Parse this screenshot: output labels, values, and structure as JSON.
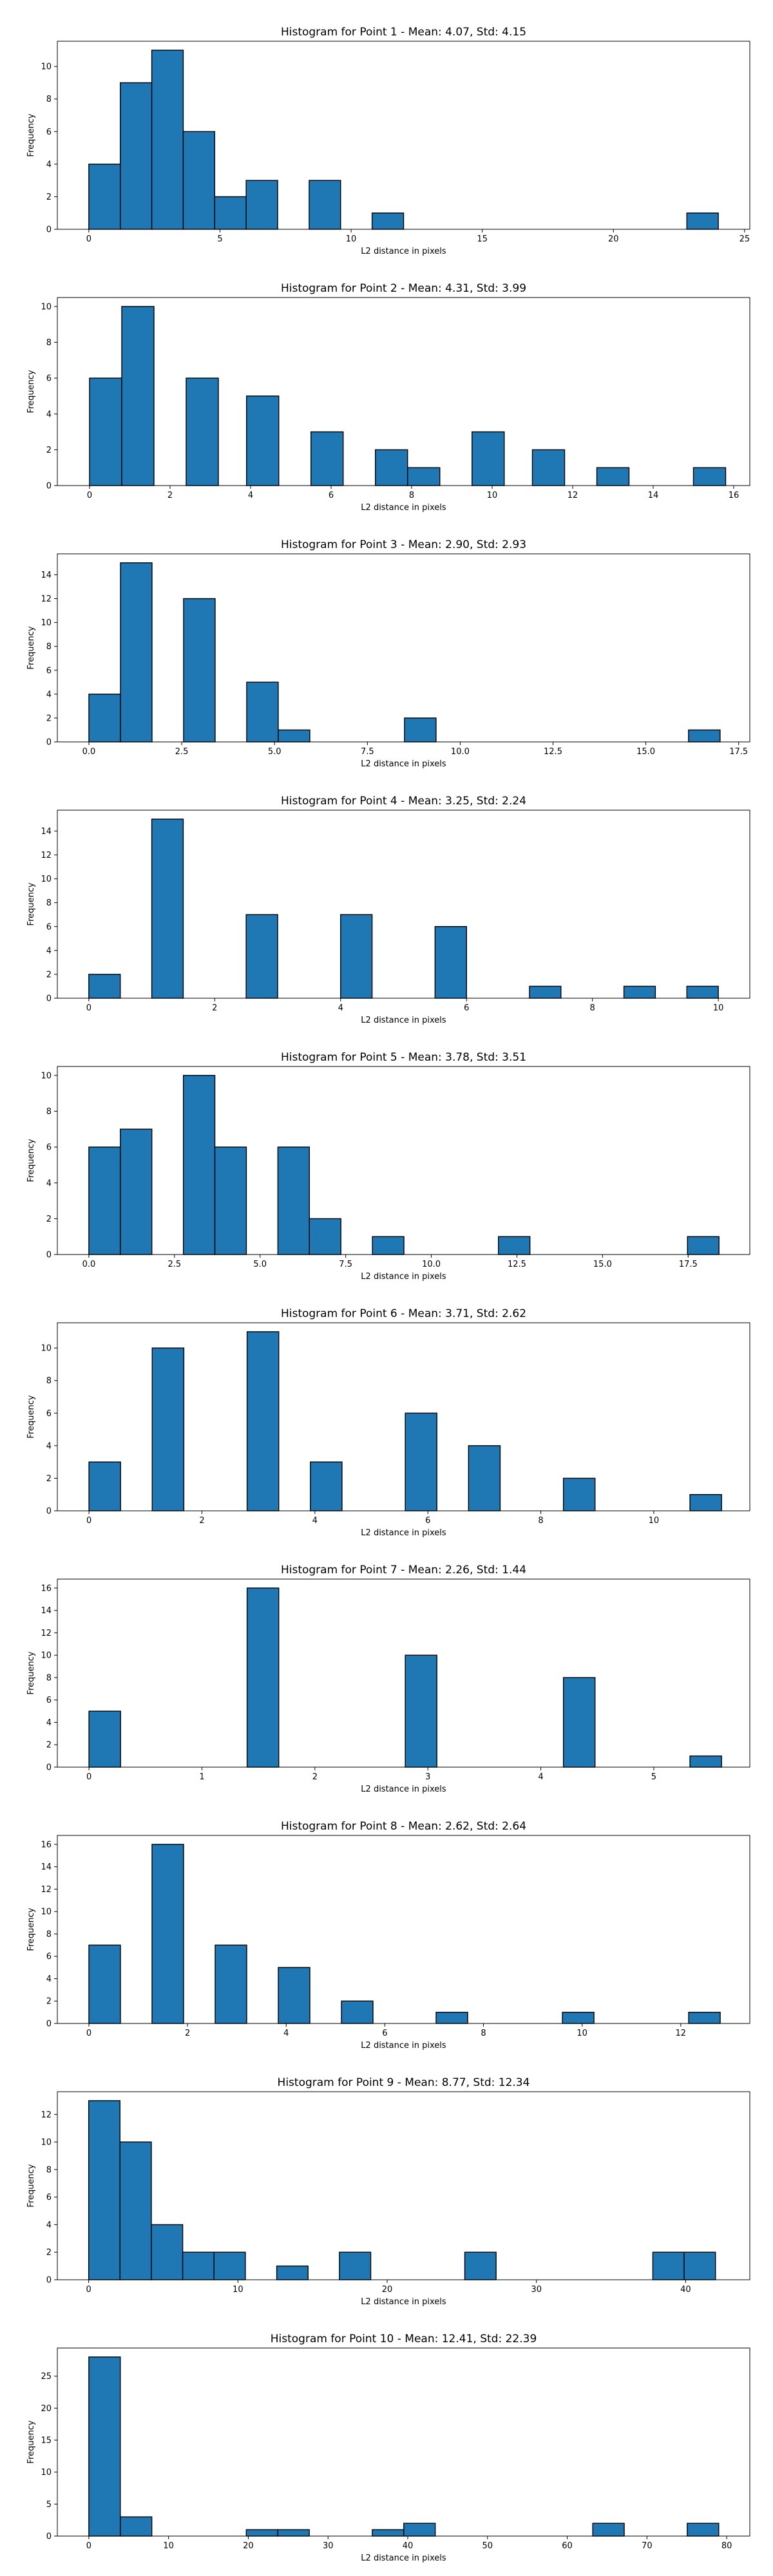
{
  "colors": {
    "bar": "#1f77b4",
    "edge": "#000000"
  },
  "chart_data": [
    {
      "type": "bar",
      "title": "Histogram for Point 1 - Mean: 4.07, Std: 4.15",
      "xlabel": "L2 distance in pixels",
      "ylabel": "Frequency",
      "xlim": [
        -1.2,
        25.2
      ],
      "ylim": [
        0,
        11.55
      ],
      "xticks": [
        0,
        5,
        10,
        15,
        20,
        25
      ],
      "yticks": [
        0,
        2,
        4,
        6,
        8,
        10
      ],
      "bars": [
        {
          "x0": 0.0,
          "x1": 1.2,
          "v": 4
        },
        {
          "x0": 1.2,
          "x1": 2.4,
          "v": 9
        },
        {
          "x0": 2.4,
          "x1": 3.6,
          "v": 11
        },
        {
          "x0": 3.6,
          "x1": 4.8,
          "v": 6
        },
        {
          "x0": 4.8,
          "x1": 6.0,
          "v": 2
        },
        {
          "x0": 6.0,
          "x1": 7.2,
          "v": 3
        },
        {
          "x0": 8.4,
          "x1": 9.6,
          "v": 3
        },
        {
          "x0": 10.8,
          "x1": 12.0,
          "v": 1
        },
        {
          "x0": 22.8,
          "x1": 24.0,
          "v": 1
        }
      ]
    },
    {
      "type": "bar",
      "title": "Histogram for Point 2 - Mean: 4.31, Std: 3.99",
      "xlabel": "L2 distance in pixels",
      "ylabel": "Frequency",
      "xlim": [
        -0.8,
        16.4
      ],
      "ylim": [
        0,
        10.5
      ],
      "xticks": [
        0,
        2,
        4,
        6,
        8,
        10,
        12,
        14,
        16
      ],
      "yticks": [
        0,
        2,
        4,
        6,
        8,
        10
      ],
      "bars": [
        {
          "x0": 0.0,
          "x1": 0.8,
          "v": 6
        },
        {
          "x0": 0.8,
          "x1": 1.6,
          "v": 10
        },
        {
          "x0": 2.4,
          "x1": 3.2,
          "v": 6
        },
        {
          "x0": 3.9,
          "x1": 4.7,
          "v": 5
        },
        {
          "x0": 5.5,
          "x1": 6.3,
          "v": 3
        },
        {
          "x0": 7.1,
          "x1": 7.9,
          "v": 2
        },
        {
          "x0": 7.9,
          "x1": 8.7,
          "v": 1
        },
        {
          "x0": 9.5,
          "x1": 10.3,
          "v": 3
        },
        {
          "x0": 11.0,
          "x1": 11.8,
          "v": 2
        },
        {
          "x0": 12.6,
          "x1": 13.4,
          "v": 1
        },
        {
          "x0": 15.0,
          "x1": 15.8,
          "v": 1
        }
      ]
    },
    {
      "type": "bar",
      "title": "Histogram for Point 3 - Mean: 2.90, Std: 2.93",
      "xlabel": "L2 distance in pixels",
      "ylabel": "Frequency",
      "xlim": [
        -0.85,
        17.8
      ],
      "ylim": [
        0,
        15.75
      ],
      "xticks": [
        0,
        2.5,
        5,
        7.5,
        10,
        12.5,
        15,
        17.5
      ],
      "xtick_labels": [
        "0.0",
        "2.5",
        "5.0",
        "7.5",
        "10.0",
        "12.5",
        "15.0",
        "17.5"
      ],
      "yticks": [
        0,
        2,
        4,
        6,
        8,
        10,
        12,
        14
      ],
      "bars": [
        {
          "x0": 0.0,
          "x1": 0.85,
          "v": 4
        },
        {
          "x0": 0.85,
          "x1": 1.7,
          "v": 15
        },
        {
          "x0": 2.55,
          "x1": 3.4,
          "v": 12
        },
        {
          "x0": 4.25,
          "x1": 5.1,
          "v": 5
        },
        {
          "x0": 5.1,
          "x1": 5.95,
          "v": 1
        },
        {
          "x0": 8.5,
          "x1": 9.35,
          "v": 2
        },
        {
          "x0": 16.15,
          "x1": 17.0,
          "v": 1
        }
      ]
    },
    {
      "type": "bar",
      "title": "Histogram for Point 4 - Mean: 3.25, Std: 2.24",
      "xlabel": "L2 distance in pixels",
      "ylabel": "Frequency",
      "xlim": [
        -0.5,
        10.5
      ],
      "ylim": [
        0,
        15.75
      ],
      "xticks": [
        0,
        2,
        4,
        6,
        8,
        10
      ],
      "yticks": [
        0,
        2,
        4,
        6,
        8,
        10,
        12,
        14
      ],
      "bars": [
        {
          "x0": 0.0,
          "x1": 0.5,
          "v": 2
        },
        {
          "x0": 1.0,
          "x1": 1.5,
          "v": 15
        },
        {
          "x0": 2.5,
          "x1": 3.0,
          "v": 7
        },
        {
          "x0": 4.0,
          "x1": 4.5,
          "v": 7
        },
        {
          "x0": 5.5,
          "x1": 6.0,
          "v": 6
        },
        {
          "x0": 7.0,
          "x1": 7.5,
          "v": 1
        },
        {
          "x0": 8.5,
          "x1": 9.0,
          "v": 1
        },
        {
          "x0": 9.5,
          "x1": 10.0,
          "v": 1
        }
      ]
    },
    {
      "type": "bar",
      "title": "Histogram for Point 5 - Mean: 3.78, Std: 3.51",
      "xlabel": "L2 distance in pixels",
      "ylabel": "Frequency",
      "xlim": [
        -0.92,
        19.3
      ],
      "ylim": [
        0,
        10.5
      ],
      "xticks": [
        0,
        2.5,
        5,
        7.5,
        10,
        12.5,
        15,
        17.5
      ],
      "xtick_labels": [
        "0.0",
        "2.5",
        "5.0",
        "7.5",
        "10.0",
        "12.5",
        "15.0",
        "17.5"
      ],
      "yticks": [
        0,
        2,
        4,
        6,
        8,
        10
      ],
      "bars": [
        {
          "x0": 0.0,
          "x1": 0.92,
          "v": 6
        },
        {
          "x0": 0.92,
          "x1": 1.84,
          "v": 7
        },
        {
          "x0": 2.76,
          "x1": 3.68,
          "v": 10
        },
        {
          "x0": 3.68,
          "x1": 4.6,
          "v": 6
        },
        {
          "x0": 5.52,
          "x1": 6.44,
          "v": 6
        },
        {
          "x0": 6.44,
          "x1": 7.36,
          "v": 2
        },
        {
          "x0": 8.28,
          "x1": 9.2,
          "v": 1
        },
        {
          "x0": 11.96,
          "x1": 12.88,
          "v": 1
        },
        {
          "x0": 17.48,
          "x1": 18.4,
          "v": 1
        }
      ]
    },
    {
      "type": "bar",
      "title": "Histogram for Point 6 - Mean: 3.71, Std: 2.62",
      "xlabel": "L2 distance in pixels",
      "ylabel": "Frequency",
      "xlim": [
        -0.56,
        11.7
      ],
      "ylim": [
        0,
        11.55
      ],
      "xticks": [
        0,
        2,
        4,
        6,
        8,
        10
      ],
      "yticks": [
        0,
        2,
        4,
        6,
        8,
        10
      ],
      "bars": [
        {
          "x0": 0.0,
          "x1": 0.56,
          "v": 3
        },
        {
          "x0": 1.12,
          "x1": 1.68,
          "v": 10
        },
        {
          "x0": 2.8,
          "x1": 3.36,
          "v": 11
        },
        {
          "x0": 3.92,
          "x1": 4.48,
          "v": 3
        },
        {
          "x0": 5.6,
          "x1": 6.16,
          "v": 6
        },
        {
          "x0": 6.72,
          "x1": 7.28,
          "v": 4
        },
        {
          "x0": 8.4,
          "x1": 8.96,
          "v": 2
        },
        {
          "x0": 10.64,
          "x1": 11.2,
          "v": 1
        }
      ]
    },
    {
      "type": "bar",
      "title": "Histogram for Point 7 - Mean: 2.26, Std: 1.44",
      "xlabel": "L2 distance in pixels",
      "ylabel": "Frequency",
      "xlim": [
        -0.28,
        5.85
      ],
      "ylim": [
        0,
        16.8
      ],
      "xticks": [
        0,
        1,
        2,
        3,
        4,
        5
      ],
      "yticks": [
        0,
        2,
        4,
        6,
        8,
        10,
        12,
        14,
        16
      ],
      "bars": [
        {
          "x0": 0.0,
          "x1": 0.28,
          "v": 5
        },
        {
          "x0": 1.4,
          "x1": 1.68,
          "v": 16
        },
        {
          "x0": 2.8,
          "x1": 3.08,
          "v": 10
        },
        {
          "x0": 4.2,
          "x1": 4.48,
          "v": 8
        },
        {
          "x0": 5.32,
          "x1": 5.6,
          "v": 1
        }
      ]
    },
    {
      "type": "bar",
      "title": "Histogram for Point 8 - Mean: 2.62, Std: 2.64",
      "xlabel": "L2 distance in pixels",
      "ylabel": "Frequency",
      "xlim": [
        -0.64,
        13.4
      ],
      "ylim": [
        0,
        16.8
      ],
      "xticks": [
        0,
        2,
        4,
        6,
        8,
        10,
        12
      ],
      "yticks": [
        0,
        2,
        4,
        6,
        8,
        10,
        12,
        14,
        16
      ],
      "bars": [
        {
          "x0": 0.0,
          "x1": 0.64,
          "v": 7
        },
        {
          "x0": 1.28,
          "x1": 1.92,
          "v": 16
        },
        {
          "x0": 2.56,
          "x1": 3.2,
          "v": 7
        },
        {
          "x0": 3.84,
          "x1": 4.48,
          "v": 5
        },
        {
          "x0": 5.12,
          "x1": 5.76,
          "v": 2
        },
        {
          "x0": 7.04,
          "x1": 7.68,
          "v": 1
        },
        {
          "x0": 9.6,
          "x1": 10.24,
          "v": 1
        },
        {
          "x0": 12.16,
          "x1": 12.8,
          "v": 1
        }
      ]
    },
    {
      "type": "bar",
      "title": "Histogram for Point 9 - Mean: 8.77, Std: 12.34",
      "xlabel": "L2 distance in pixels",
      "ylabel": "Frequency",
      "xlim": [
        -2.1,
        44.3
      ],
      "ylim": [
        0,
        13.65
      ],
      "xticks": [
        0,
        10,
        20,
        30,
        40
      ],
      "yticks": [
        0,
        2,
        4,
        6,
        8,
        10,
        12
      ],
      "bars": [
        {
          "x0": 0.0,
          "x1": 2.1,
          "v": 13
        },
        {
          "x0": 2.1,
          "x1": 4.2,
          "v": 10
        },
        {
          "x0": 4.2,
          "x1": 6.3,
          "v": 4
        },
        {
          "x0": 6.3,
          "x1": 8.4,
          "v": 2
        },
        {
          "x0": 8.4,
          "x1": 10.5,
          "v": 2
        },
        {
          "x0": 12.6,
          "x1": 14.7,
          "v": 1
        },
        {
          "x0": 16.8,
          "x1": 18.9,
          "v": 2
        },
        {
          "x0": 25.2,
          "x1": 27.3,
          "v": 2
        },
        {
          "x0": 37.8,
          "x1": 39.9,
          "v": 2
        },
        {
          "x0": 39.9,
          "x1": 42.0,
          "v": 2
        }
      ]
    },
    {
      "type": "bar",
      "title": "Histogram for Point 10 - Mean: 12.41, Std: 22.39",
      "xlabel": "L2 distance in pixels",
      "ylabel": "Frequency",
      "xlim": [
        -3.95,
        82.9
      ],
      "ylim": [
        0,
        29.4
      ],
      "xticks": [
        0,
        10,
        20,
        30,
        40,
        50,
        60,
        70,
        80
      ],
      "yticks": [
        0,
        5,
        10,
        15,
        20,
        25
      ],
      "bars": [
        {
          "x0": 0.0,
          "x1": 3.95,
          "v": 28
        },
        {
          "x0": 3.95,
          "x1": 7.9,
          "v": 3
        },
        {
          "x0": 19.75,
          "x1": 23.7,
          "v": 1
        },
        {
          "x0": 23.7,
          "x1": 27.65,
          "v": 1
        },
        {
          "x0": 35.55,
          "x1": 39.5,
          "v": 1
        },
        {
          "x0": 39.5,
          "x1": 43.45,
          "v": 2
        },
        {
          "x0": 63.2,
          "x1": 67.15,
          "v": 2
        },
        {
          "x0": 75.05,
          "x1": 79.0,
          "v": 2
        }
      ]
    }
  ]
}
